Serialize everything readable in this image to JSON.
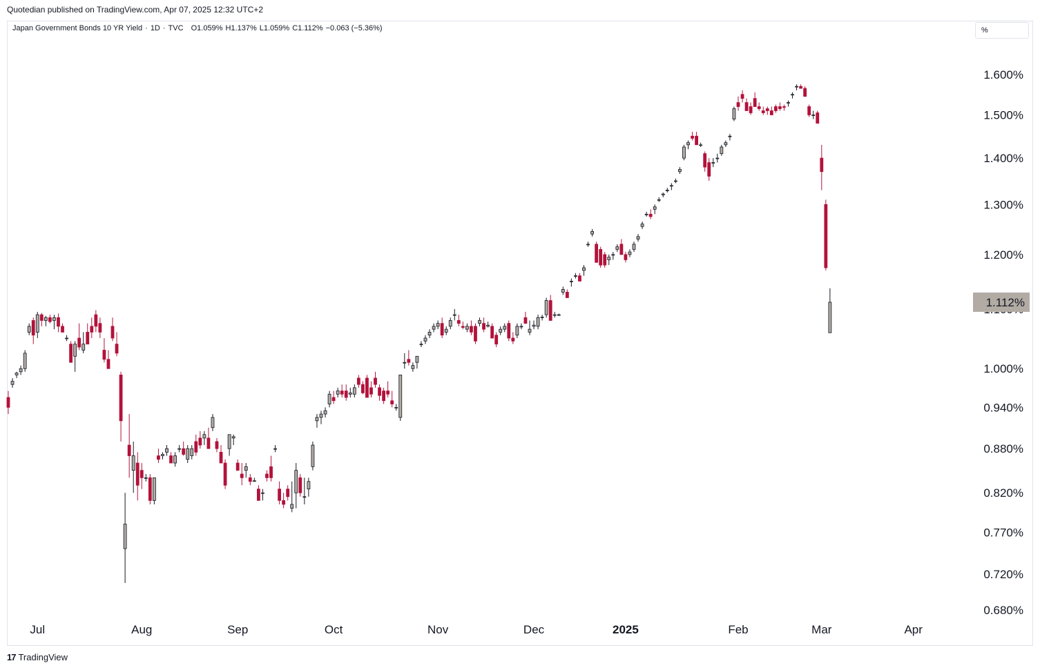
{
  "header": {
    "published": "Quotedian published on TradingView.com, Apr 07, 2025 12:32 UTC+2"
  },
  "legend": {
    "name": "Japan Government Bonds 10 YR Yield",
    "interval": "1D",
    "source": "TVC",
    "open": "O1.059%",
    "high": "H1.137%",
    "low": "L1.059%",
    "close": "C1.112%",
    "change": "−0.063 (−5.36%)"
  },
  "scale_button": "%",
  "footer": {
    "brand": "TradingView"
  },
  "colors": {
    "up": "#b2aba4",
    "down": "#b2123b",
    "outline": "#131722",
    "last_price_bg": "#b2aba4"
  },
  "chart_data": {
    "type": "candlestick",
    "title": "",
    "y_axis": {
      "position": "right",
      "ticks": [
        {
          "value": 1.6,
          "label": "1.600%"
        },
        {
          "value": 1.5,
          "label": "1.500%"
        },
        {
          "value": 1.4,
          "label": "1.400%"
        },
        {
          "value": 1.3,
          "label": "1.300%"
        },
        {
          "value": 1.2,
          "label": "1.200%"
        },
        {
          "value": 1.1,
          "label": "1.100%"
        },
        {
          "value": 1.0,
          "label": "1.000%"
        },
        {
          "value": 0.94,
          "label": "0.940%"
        },
        {
          "value": 0.88,
          "label": "0.880%"
        },
        {
          "value": 0.82,
          "label": "0.820%"
        },
        {
          "value": 0.77,
          "label": "0.770%"
        },
        {
          "value": 0.72,
          "label": "0.720%"
        },
        {
          "value": 0.68,
          "label": "0.680%"
        }
      ]
    },
    "x_axis": {
      "ticks": [
        {
          "label": "Jul",
          "index": 7,
          "bold": false
        },
        {
          "label": "Aug",
          "index": 32,
          "bold": false
        },
        {
          "label": "Sep",
          "index": 55,
          "bold": false
        },
        {
          "label": "Oct",
          "index": 78,
          "bold": false
        },
        {
          "label": "Nov",
          "index": 103,
          "bold": false
        },
        {
          "label": "Dec",
          "index": 126,
          "bold": false
        },
        {
          "label": "2025",
          "index": 148,
          "bold": true
        },
        {
          "label": "Feb",
          "index": 175,
          "bold": false
        },
        {
          "label": "Mar",
          "index": 195,
          "bold": false
        },
        {
          "label": "Apr",
          "index": 217,
          "bold": false
        }
      ]
    },
    "last_price": {
      "value": 1.112,
      "label": "1.112%"
    },
    "grid": false,
    "candles": [
      [
        0.955,
        0.965,
        0.93,
        0.94
      ],
      [
        0.975,
        0.985,
        0.97,
        0.98
      ],
      [
        0.99,
        0.995,
        0.985,
        0.993
      ],
      [
        0.995,
        1.005,
        0.99,
        1.0
      ],
      [
        1.0,
        1.03,
        0.995,
        1.025
      ],
      [
        1.06,
        1.075,
        1.055,
        1.07
      ],
      [
        1.08,
        1.085,
        1.04,
        1.055
      ],
      [
        1.06,
        1.095,
        1.05,
        1.09
      ],
      [
        1.09,
        1.093,
        1.07,
        1.08
      ],
      [
        1.08,
        1.088,
        1.07,
        1.085
      ],
      [
        1.085,
        1.09,
        1.075,
        1.078
      ],
      [
        1.08,
        1.09,
        1.065,
        1.085
      ],
      [
        1.085,
        1.092,
        1.06,
        1.07
      ],
      [
        1.07,
        1.075,
        1.06,
        1.06
      ],
      [
        1.05,
        1.055,
        1.045,
        1.05
      ],
      [
        1.04,
        1.045,
        1.01,
        1.01
      ],
      [
        1.02,
        1.045,
        0.995,
        1.04
      ],
      [
        1.05,
        1.075,
        1.03,
        1.035
      ],
      [
        1.03,
        1.06,
        1.025,
        1.04
      ],
      [
        1.06,
        1.075,
        1.04,
        1.04
      ],
      [
        1.07,
        1.085,
        1.05,
        1.06
      ],
      [
        1.09,
        1.098,
        1.06,
        1.07
      ],
      [
        1.075,
        1.085,
        1.05,
        1.06
      ],
      [
        1.03,
        1.05,
        1.01,
        1.015
      ],
      [
        1.015,
        1.03,
        1.0,
        1.0
      ],
      [
        1.07,
        1.085,
        1.045,
        1.05
      ],
      [
        1.04,
        1.06,
        1.02,
        1.025
      ],
      [
        0.99,
        0.995,
        0.89,
        0.92
      ],
      [
        0.75,
        0.82,
        0.71,
        0.78
      ],
      [
        0.885,
        0.93,
        0.84,
        0.87
      ],
      [
        0.85,
        0.89,
        0.82,
        0.87
      ],
      [
        0.86,
        0.875,
        0.81,
        0.83
      ],
      [
        0.85,
        0.86,
        0.825,
        0.84
      ],
      [
        0.84,
        0.845,
        0.835,
        0.84
      ],
      [
        0.84,
        0.845,
        0.805,
        0.81
      ],
      [
        0.81,
        0.84,
        0.805,
        0.84
      ],
      [
        0.87,
        0.88,
        0.86,
        0.865
      ],
      [
        0.87,
        0.875,
        0.865,
        0.872
      ],
      [
        0.875,
        0.885,
        0.87,
        0.88
      ],
      [
        0.87,
        0.875,
        0.86,
        0.86
      ],
      [
        0.86,
        0.875,
        0.855,
        0.87
      ],
      [
        0.88,
        0.885,
        0.875,
        0.88
      ],
      [
        0.88,
        0.89,
        0.87,
        0.872
      ],
      [
        0.865,
        0.885,
        0.86,
        0.88
      ],
      [
        0.87,
        0.885,
        0.865,
        0.88
      ],
      [
        0.89,
        0.9,
        0.87,
        0.875
      ],
      [
        0.895,
        0.905,
        0.88,
        0.885
      ],
      [
        0.895,
        0.905,
        0.885,
        0.9
      ],
      [
        0.895,
        0.91,
        0.88,
        0.88
      ],
      [
        0.91,
        0.93,
        0.905,
        0.925
      ],
      [
        0.89,
        0.895,
        0.875,
        0.88
      ],
      [
        0.875,
        0.885,
        0.86,
        0.86
      ],
      [
        0.86,
        0.865,
        0.825,
        0.83
      ],
      [
        0.88,
        0.9,
        0.87,
        0.9
      ],
      [
        0.895,
        0.9,
        0.885,
        0.897
      ],
      [
        0.86,
        0.865,
        0.85,
        0.85
      ],
      [
        0.845,
        0.86,
        0.83,
        0.84
      ],
      [
        0.85,
        0.86,
        0.84,
        0.855
      ],
      [
        0.84,
        0.845,
        0.83,
        0.835
      ],
      [
        0.835,
        0.84,
        0.835,
        0.836
      ],
      [
        0.825,
        0.83,
        0.81,
        0.81
      ],
      [
        0.82,
        0.825,
        0.81,
        0.82
      ],
      [
        0.845,
        0.85,
        0.835,
        0.84
      ],
      [
        0.855,
        0.87,
        0.835,
        0.84
      ],
      [
        0.88,
        0.885,
        0.875,
        0.88
      ],
      [
        0.825,
        0.835,
        0.805,
        0.81
      ],
      [
        0.81,
        0.82,
        0.8,
        0.805
      ],
      [
        0.825,
        0.83,
        0.81,
        0.815
      ],
      [
        0.8,
        0.835,
        0.795,
        0.805
      ],
      [
        0.82,
        0.86,
        0.8,
        0.85
      ],
      [
        0.84,
        0.845,
        0.815,
        0.82
      ],
      [
        0.815,
        0.84,
        0.805,
        0.815
      ],
      [
        0.825,
        0.84,
        0.815,
        0.835
      ],
      [
        0.855,
        0.89,
        0.85,
        0.885
      ],
      [
        0.92,
        0.93,
        0.91,
        0.925
      ],
      [
        0.925,
        0.935,
        0.915,
        0.93
      ],
      [
        0.93,
        0.94,
        0.925,
        0.935
      ],
      [
        0.945,
        0.965,
        0.94,
        0.96
      ],
      [
        0.955,
        0.965,
        0.945,
        0.95
      ],
      [
        0.96,
        0.97,
        0.955,
        0.965
      ],
      [
        0.965,
        0.975,
        0.955,
        0.96
      ],
      [
        0.965,
        0.975,
        0.95,
        0.955
      ],
      [
        0.96,
        0.97,
        0.955,
        0.962
      ],
      [
        0.96,
        0.975,
        0.955,
        0.97
      ],
      [
        0.985,
        0.99,
        0.97,
        0.975
      ],
      [
        0.975,
        0.98,
        0.96,
        0.962
      ],
      [
        0.985,
        0.99,
        0.955,
        0.955
      ],
      [
        0.97,
        0.98,
        0.955,
        0.96
      ],
      [
        0.985,
        0.995,
        0.97,
        0.975
      ],
      [
        0.97,
        0.975,
        0.95,
        0.958
      ],
      [
        0.965,
        0.97,
        0.945,
        0.95
      ],
      [
        0.965,
        0.98,
        0.955,
        0.96
      ],
      [
        0.95,
        0.965,
        0.94,
        0.945
      ],
      [
        0.94,
        0.945,
        0.935,
        0.94
      ],
      [
        0.925,
        0.99,
        0.92,
        0.99
      ],
      [
        1.01,
        1.025,
        1.0,
        1.01
      ],
      [
        1.015,
        1.03,
        1.005,
        1.01
      ],
      [
        1.0,
        1.01,
        0.995,
        1.005
      ],
      [
        1.01,
        1.02,
        1.0,
        1.02
      ],
      [
        1.04,
        1.045,
        1.035,
        1.04
      ],
      [
        1.045,
        1.055,
        1.04,
        1.05
      ],
      [
        1.055,
        1.065,
        1.05,
        1.06
      ],
      [
        1.065,
        1.075,
        1.06,
        1.07
      ],
      [
        1.07,
        1.08,
        1.065,
        1.075
      ],
      [
        1.075,
        1.085,
        1.05,
        1.055
      ],
      [
        1.06,
        1.07,
        1.055,
        1.065
      ],
      [
        1.07,
        1.085,
        1.065,
        1.08
      ],
      [
        1.09,
        1.1,
        1.08,
        1.09
      ],
      [
        1.08,
        1.09,
        1.07,
        1.075
      ],
      [
        1.07,
        1.078,
        1.065,
        1.068
      ],
      [
        1.065,
        1.075,
        1.06,
        1.07
      ],
      [
        1.07,
        1.08,
        1.055,
        1.06
      ],
      [
        1.07,
        1.075,
        1.04,
        1.045
      ],
      [
        1.075,
        1.085,
        1.07,
        1.08
      ],
      [
        1.075,
        1.085,
        1.06,
        1.065
      ],
      [
        1.07,
        1.078,
        1.068,
        1.072
      ],
      [
        1.07,
        1.075,
        1.05,
        1.05
      ],
      [
        1.055,
        1.06,
        1.035,
        1.04
      ],
      [
        1.06,
        1.07,
        1.055,
        1.065
      ],
      [
        1.065,
        1.075,
        1.06,
        1.07
      ],
      [
        1.075,
        1.08,
        1.045,
        1.05
      ],
      [
        1.05,
        1.06,
        1.04,
        1.045
      ],
      [
        1.055,
        1.075,
        1.05,
        1.07
      ],
      [
        1.07,
        1.075,
        1.065,
        1.07
      ],
      [
        1.085,
        1.095,
        1.075,
        1.075
      ],
      [
        1.06,
        1.08,
        1.055,
        1.065
      ],
      [
        1.07,
        1.08,
        1.065,
        1.072
      ],
      [
        1.07,
        1.09,
        1.065,
        1.085
      ],
      [
        1.085,
        1.09,
        1.08,
        1.086
      ],
      [
        1.09,
        1.12,
        1.085,
        1.115
      ],
      [
        1.115,
        1.125,
        1.08,
        1.08
      ],
      [
        1.09,
        1.095,
        1.085,
        1.09
      ],
      [
        1.09,
        1.092,
        1.088,
        1.09
      ],
      [
        1.13,
        1.14,
        1.125,
        1.135
      ],
      [
        1.13,
        1.135,
        1.12,
        1.12
      ],
      [
        1.15,
        1.155,
        1.14,
        1.15
      ],
      [
        1.16,
        1.165,
        1.155,
        1.16
      ],
      [
        1.16,
        1.165,
        1.15,
        1.15
      ],
      [
        1.17,
        1.18,
        1.16,
        1.175
      ],
      [
        1.22,
        1.225,
        1.215,
        1.22
      ],
      [
        1.24,
        1.25,
        1.235,
        1.245
      ],
      [
        1.22,
        1.225,
        1.185,
        1.185
      ],
      [
        1.21,
        1.215,
        1.175,
        1.18
      ],
      [
        1.2,
        1.205,
        1.175,
        1.18
      ],
      [
        1.19,
        1.2,
        1.18,
        1.195
      ],
      [
        1.2,
        1.205,
        1.19,
        1.2
      ],
      [
        1.21,
        1.22,
        1.205,
        1.215
      ],
      [
        1.22,
        1.23,
        1.2,
        1.2
      ],
      [
        1.2,
        1.205,
        1.185,
        1.19
      ],
      [
        1.2,
        1.21,
        1.195,
        1.205
      ],
      [
        1.21,
        1.225,
        1.205,
        1.22
      ],
      [
        1.23,
        1.24,
        1.225,
        1.235
      ],
      [
        1.255,
        1.265,
        1.25,
        1.26
      ],
      [
        1.28,
        1.285,
        1.275,
        1.28
      ],
      [
        1.28,
        1.29,
        1.27,
        1.275
      ],
      [
        1.29,
        1.3,
        1.28,
        1.295
      ],
      [
        1.31,
        1.315,
        1.305,
        1.31
      ],
      [
        1.32,
        1.325,
        1.315,
        1.322
      ],
      [
        1.33,
        1.335,
        1.325,
        1.33
      ],
      [
        1.34,
        1.345,
        1.33,
        1.34
      ],
      [
        1.35,
        1.355,
        1.345,
        1.35
      ],
      [
        1.37,
        1.38,
        1.365,
        1.375
      ],
      [
        1.4,
        1.43,
        1.395,
        1.425
      ],
      [
        1.43,
        1.44,
        1.42,
        1.435
      ],
      [
        1.45,
        1.46,
        1.44,
        1.445
      ],
      [
        1.45,
        1.46,
        1.43,
        1.43
      ],
      [
        1.43,
        1.435,
        1.425,
        1.43
      ],
      [
        1.41,
        1.415,
        1.37,
        1.38
      ],
      [
        1.39,
        1.4,
        1.35,
        1.36
      ],
      [
        1.39,
        1.4,
        1.38,
        1.39
      ],
      [
        1.4,
        1.41,
        1.39,
        1.4
      ],
      [
        1.41,
        1.43,
        1.405,
        1.425
      ],
      [
        1.43,
        1.44,
        1.425,
        1.435
      ],
      [
        1.45,
        1.455,
        1.44,
        1.45
      ],
      [
        1.49,
        1.52,
        1.485,
        1.515
      ],
      [
        1.53,
        1.545,
        1.51,
        1.52
      ],
      [
        1.55,
        1.56,
        1.53,
        1.54
      ],
      [
        1.53,
        1.54,
        1.51,
        1.51
      ],
      [
        1.52,
        1.53,
        1.5,
        1.505
      ],
      [
        1.54,
        1.555,
        1.52,
        1.52
      ],
      [
        1.52,
        1.53,
        1.51,
        1.515
      ],
      [
        1.51,
        1.52,
        1.5,
        1.505
      ],
      [
        1.515,
        1.52,
        1.5,
        1.51
      ],
      [
        1.51,
        1.52,
        1.5,
        1.5
      ],
      [
        1.52,
        1.525,
        1.505,
        1.51
      ],
      [
        1.52,
        1.53,
        1.51,
        1.515
      ],
      [
        1.52,
        1.525,
        1.51,
        1.518
      ],
      [
        1.53,
        1.535,
        1.52,
        1.53
      ],
      [
        1.55,
        1.555,
        1.54,
        1.55
      ],
      [
        1.57,
        1.575,
        1.56,
        1.57
      ],
      [
        1.57,
        1.575,
        1.565,
        1.565
      ],
      [
        1.565,
        1.57,
        1.545,
        1.545
      ],
      [
        1.52,
        1.525,
        1.495,
        1.5
      ],
      [
        1.5,
        1.51,
        1.49,
        1.5
      ],
      [
        1.505,
        1.51,
        1.48,
        1.48
      ],
      [
        1.4,
        1.43,
        1.33,
        1.37
      ],
      [
        1.3,
        1.31,
        1.17,
        1.175
      ],
      [
        1.059,
        1.137,
        1.059,
        1.112
      ]
    ]
  }
}
